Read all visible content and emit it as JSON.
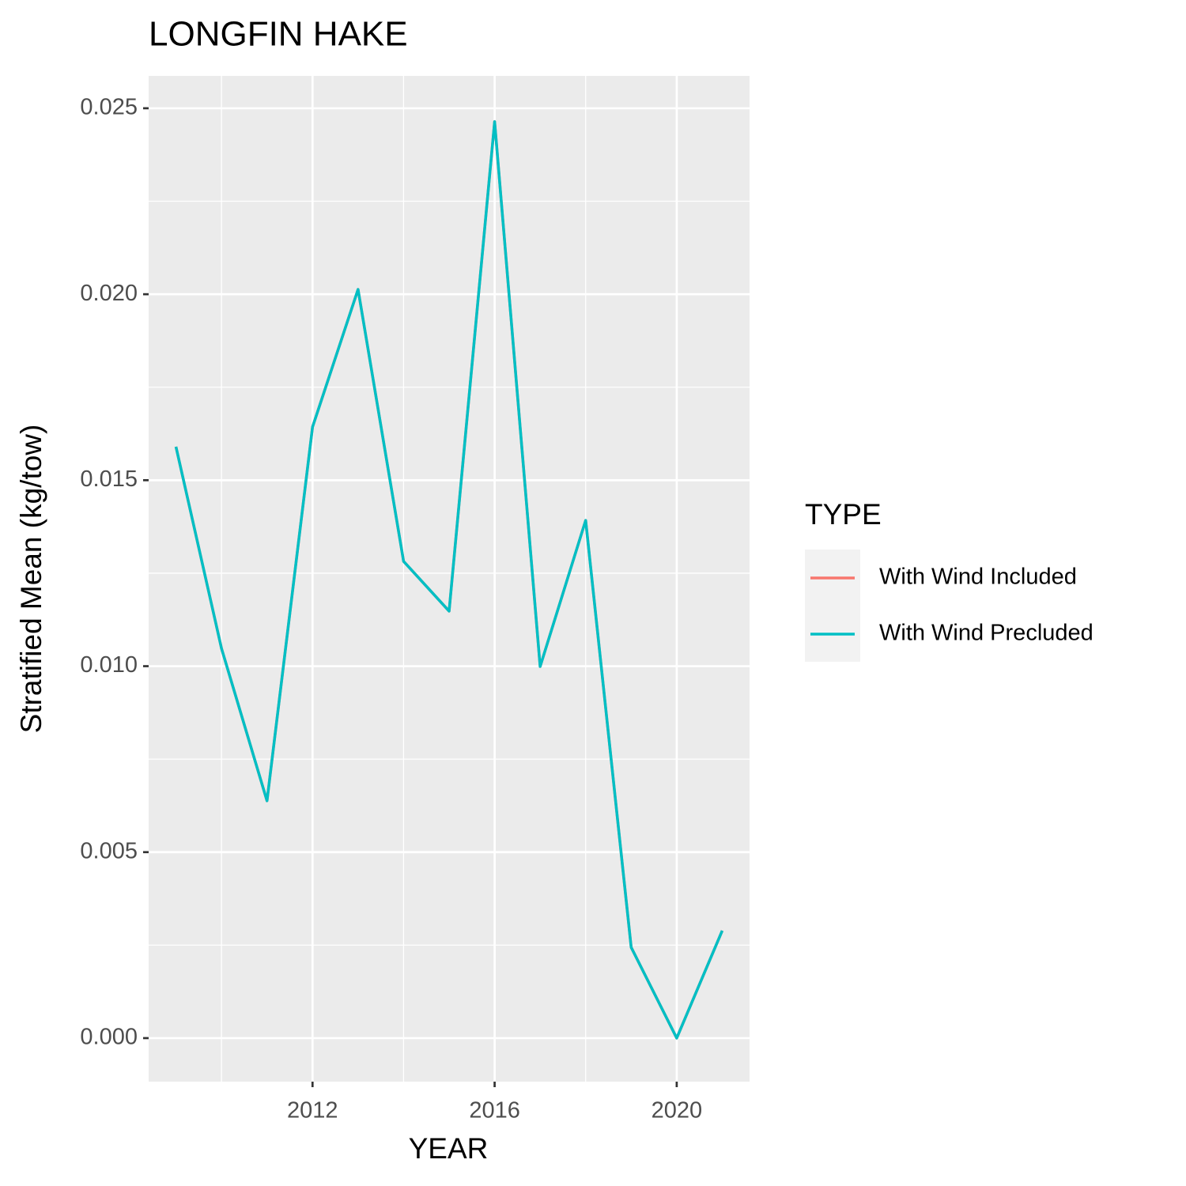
{
  "chart_data": {
    "type": "line",
    "title": "LONGFIN HAKE",
    "x_label": "YEAR",
    "y_label": "Stratified Mean (kg/tow)",
    "legend_title": "TYPE",
    "legend_position": "right",
    "x": [
      2009,
      2010,
      2011,
      2012,
      2013,
      2014,
      2015,
      2016,
      2017,
      2018,
      2019,
      2020,
      2021
    ],
    "series": [
      {
        "name": "With Wind Included",
        "color": "#F8766D",
        "values": [
          0.0159,
          0.01048,
          0.00638,
          0.01643,
          0.02013,
          0.01282,
          0.01148,
          0.02464,
          0.00999,
          0.01392,
          0.00244,
          0,
          0.00289
        ]
      },
      {
        "name": "With Wind Precluded",
        "color": "#00BFC4",
        "values": [
          0.0159,
          0.01048,
          0.00638,
          0.01643,
          0.02013,
          0.01282,
          0.01148,
          0.02464,
          0.00999,
          0.01392,
          0.00244,
          0,
          0.00289
        ]
      }
    ],
    "xlim": [
      2008.4,
      2021.6
    ],
    "xticks": [
      2012,
      2016,
      2020
    ],
    "ylim": [
      -0.00117,
      0.02587
    ],
    "yticks": [
      {
        "value": 0,
        "label": "0.000"
      },
      {
        "value": 0.005,
        "label": "0.005"
      },
      {
        "value": 0.01,
        "label": "0.010"
      },
      {
        "value": 0.015,
        "label": "0.015"
      },
      {
        "value": 0.02,
        "label": "0.020"
      },
      {
        "value": 0.025,
        "label": "0.025"
      }
    ],
    "grid": true
  }
}
